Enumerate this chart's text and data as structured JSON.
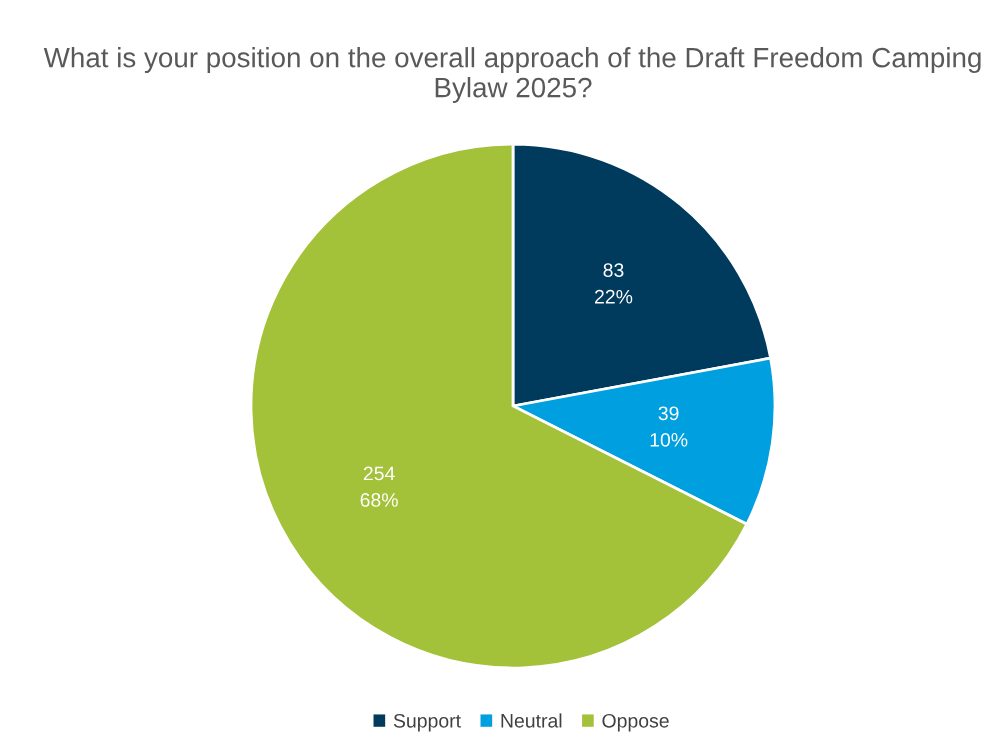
{
  "chart_data": {
    "type": "pie",
    "title": "What is your position on the overall approach of the Draft Freedom Camping Bylaw 2025?",
    "categories": [
      "Support",
      "Neutral",
      "Oppose"
    ],
    "values": [
      83,
      39,
      254
    ],
    "colors": [
      "#003a5d",
      "#009fdf",
      "#a4c13a"
    ],
    "value_labels": [
      "83\n22%",
      "39\n10%",
      "254\n68%"
    ],
    "legend": "bottom"
  }
}
